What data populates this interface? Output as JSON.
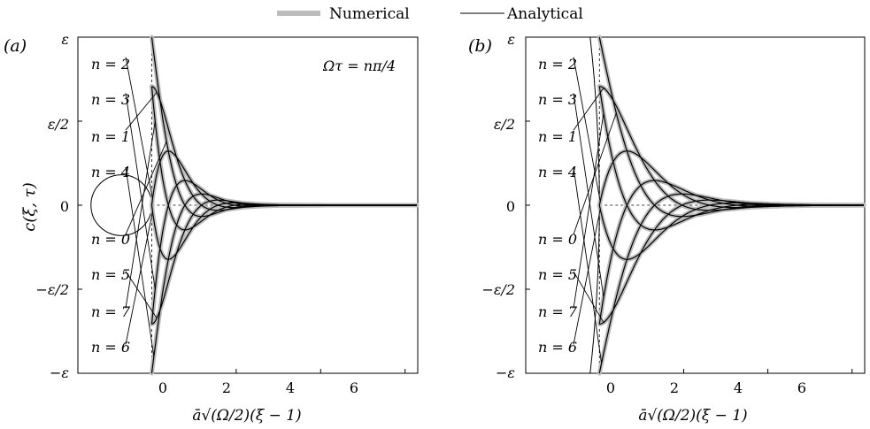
{
  "legend": {
    "numerical_label": "Numerical",
    "analytical_label": "Analytical",
    "numerical_color": "#bcbcbc",
    "analytical_color": "#000000"
  },
  "chart_data": [
    {
      "type": "line",
      "panel_label": "(a)",
      "annotation": "Ωτ = nπ/4",
      "xlabel": "ā√(Ω/2)(ξ − 1)",
      "ylabel": "c(ξ, τ)",
      "xlim": [
        -1.75,
        6.3
      ],
      "ylim": [
        -1.0,
        1.0
      ],
      "x_ticks": [
        0,
        2,
        4,
        6
      ],
      "x_tick_labels": [
        "0",
        "2",
        "4",
        "6"
      ],
      "y_ticks": [
        -1.0,
        -0.5,
        0,
        0.5,
        1.0
      ],
      "y_tick_labels": [
        "−ε",
        "−ε/2",
        "0",
        "ε/2",
        "ε"
      ],
      "circle": {
        "center_x": -0.72,
        "center_y": 0.0,
        "radius": 0.72
      },
      "series": [
        {
          "label": "n = 2",
          "values_at_x0": 1.0,
          "label_y": 0.855
        },
        {
          "label": "n = 3",
          "values_at_x0": 0.72,
          "label_y": 0.64
        },
        {
          "label": "n = 1",
          "values_at_x0": 0.45,
          "label_y": 0.42
        },
        {
          "label": "n = 4",
          "values_at_x0": 0.0,
          "label_y": 0.2
        },
        {
          "label": "n = 0",
          "values_at_x0": 0.0,
          "label_y": -0.2
        },
        {
          "label": "n = 5",
          "values_at_x0": -0.45,
          "label_y": -0.42
        },
        {
          "label": "n = 7",
          "values_at_x0": -0.72,
          "label_y": -0.64
        },
        {
          "label": "n = 6",
          "values_at_x0": -1.0,
          "label_y": -0.855
        }
      ]
    },
    {
      "type": "line",
      "panel_label": "(b)",
      "xlabel": "ā√(Ω/2)(ξ − 1)",
      "xlim": [
        -1.75,
        6.3
      ],
      "ylim": [
        -1.0,
        1.0
      ],
      "x_ticks": [
        0,
        2,
        4,
        6
      ],
      "x_tick_labels": [
        "0",
        "2",
        "4",
        "6"
      ],
      "y_ticks": [
        -1.0,
        -0.5,
        0,
        0.5,
        1.0
      ],
      "y_tick_labels": [
        "−ε",
        "−ε/2",
        "0",
        "ε/2",
        "ε"
      ],
      "series": [
        {
          "label": "n = 2",
          "values_at_x0": 1.0,
          "label_y": 0.855
        },
        {
          "label": "n = 3",
          "values_at_x0": 0.72,
          "label_y": 0.64
        },
        {
          "label": "n = 1",
          "values_at_x0": 0.45,
          "label_y": 0.42
        },
        {
          "label": "n = 4",
          "values_at_x0": 0.0,
          "label_y": 0.2
        },
        {
          "label": "n = 0",
          "values_at_x0": 0.0,
          "label_y": -0.2
        },
        {
          "label": "n = 5",
          "values_at_x0": -0.45,
          "label_y": -0.42
        },
        {
          "label": "n = 7",
          "values_at_x0": -0.72,
          "label_y": -0.64
        },
        {
          "label": "n = 6",
          "values_at_x0": -1.0,
          "label_y": -0.855
        }
      ]
    }
  ]
}
